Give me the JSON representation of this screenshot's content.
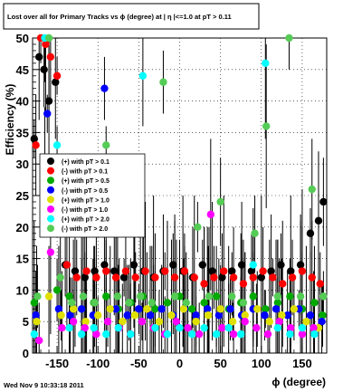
{
  "chart_data": {
    "type": "scatter",
    "title": "Lost over all for Primary Tracks vs ϕ (degree) at | η |<=1.0 at pT > 0.11",
    "xlabel": "ϕ (degree)",
    "ylabel": "Efficiency (%)",
    "xlim": [
      -180,
      180
    ],
    "ylim": [
      0,
      50
    ],
    "xticks": [
      -150,
      -100,
      -50,
      0,
      50,
      100,
      150
    ],
    "xtick_labels": [
      "-150",
      "-100",
      "-50",
      "0",
      "50",
      "100",
      "150"
    ],
    "yticks": [
      0,
      5,
      10,
      15,
      20,
      25,
      30,
      35,
      40,
      45,
      50
    ],
    "ytick_labels": [
      "0",
      "5",
      "10",
      "15",
      "20",
      "25",
      "30",
      "35",
      "40",
      "45",
      "50"
    ],
    "grid": true,
    "legend_position": "center-left",
    "series": [
      {
        "name": "(+) with pT > 0.1",
        "color": "#000000",
        "x": [
          -178,
          -172,
          -166,
          -160,
          -152,
          -140,
          -128,
          -116,
          -104,
          -92,
          -80,
          -68,
          -56,
          -44,
          -32,
          -20,
          -8,
          4,
          16,
          28,
          40,
          52,
          64,
          76,
          88,
          100,
          112,
          124,
          136,
          148,
          160,
          170,
          176
        ],
        "y": [
          34,
          47,
          45,
          40,
          43,
          14,
          13,
          12,
          13,
          14,
          13,
          12,
          14,
          13,
          12,
          13,
          14,
          13,
          12,
          14,
          13,
          12,
          13,
          14,
          13,
          12,
          13,
          14,
          13,
          14,
          19,
          21,
          24
        ]
      },
      {
        "name": "(-) with pT > 0.1",
        "color": "#ff0000",
        "x": [
          -176,
          -170,
          -164,
          -158,
          -150,
          -138,
          -126,
          -114,
          -102,
          -90,
          -78,
          -66,
          -54,
          -42,
          -30,
          -18,
          -6,
          6,
          18,
          30,
          42,
          54,
          66,
          78,
          90,
          102,
          114,
          126,
          138,
          150,
          162,
          172
        ],
        "y": [
          33,
          50,
          49,
          47,
          44,
          14,
          12,
          13,
          12,
          13,
          12,
          13,
          12,
          13,
          12,
          13,
          12,
          13,
          12,
          11,
          12,
          13,
          12,
          11,
          12,
          13,
          12,
          11,
          12,
          13,
          12,
          11
        ]
      },
      {
        "name": "(+) with pT > 0.5",
        "color": "#00aa00",
        "x": [
          -178,
          -165,
          -150,
          -135,
          -120,
          -105,
          -90,
          -75,
          -60,
          -45,
          -30,
          -15,
          0,
          15,
          30,
          45,
          60,
          75,
          90,
          105,
          120,
          135,
          150,
          165,
          175
        ],
        "y": [
          8,
          30,
          10,
          9,
          7,
          8,
          9,
          7,
          8,
          9,
          7,
          8,
          9,
          7,
          8,
          9,
          7,
          8,
          9,
          7,
          8,
          9,
          7,
          8,
          6
        ]
      },
      {
        "name": "(-) with pT > 0.5",
        "color": "#0000ff",
        "x": [
          -176,
          -162,
          -148,
          -134,
          -120,
          -106,
          -92,
          -78,
          -64,
          -50,
          -36,
          -22,
          -8,
          6,
          20,
          34,
          48,
          62,
          76,
          90,
          104,
          118,
          132,
          146,
          160,
          174
        ],
        "y": [
          6,
          38,
          7,
          6,
          7,
          6,
          42,
          7,
          6,
          7,
          6,
          7,
          6,
          7,
          6,
          7,
          6,
          7,
          6,
          7,
          6,
          7,
          6,
          7,
          6,
          5
        ]
      },
      {
        "name": "(+) with pT > 1.0",
        "color": "#e0e000",
        "x": [
          -175,
          -160,
          -145,
          -130,
          -115,
          -100,
          -85,
          -70,
          -55,
          -40,
          -25,
          -10,
          5,
          20,
          35,
          50,
          65,
          80,
          95,
          110,
          125,
          140,
          155,
          170
        ],
        "y": [
          5,
          9,
          6,
          7,
          5,
          6,
          7,
          5,
          6,
          7,
          5,
          6,
          7,
          5,
          6,
          7,
          5,
          6,
          7,
          5,
          6,
          7,
          5,
          4
        ]
      },
      {
        "name": "(-) with pT > 1.0",
        "color": "#ff00ff",
        "x": [
          -172,
          -158,
          -144,
          -130,
          -116,
          -102,
          -88,
          -74,
          -60,
          -46,
          -32,
          -18,
          -4,
          10,
          24,
          38,
          52,
          66,
          80,
          94,
          108,
          122,
          136,
          150,
          164
        ],
        "y": [
          2,
          16,
          4,
          5,
          4,
          3,
          5,
          4,
          3,
          5,
          4,
          3,
          5,
          4,
          3,
          22,
          4,
          3,
          5,
          4,
          3,
          5,
          4,
          3,
          4
        ]
      },
      {
        "name": "(+) with pT > 2.0",
        "color": "#00ffff",
        "x": [
          -178,
          -165,
          -150,
          -135,
          -120,
          -105,
          -90,
          -75,
          -60,
          -45,
          -30,
          -15,
          0,
          15,
          30,
          45,
          60,
          75,
          90,
          105,
          120,
          135,
          150,
          165
        ],
        "y": [
          3,
          50,
          33,
          4,
          3,
          4,
          3,
          4,
          3,
          44,
          4,
          3,
          4,
          3,
          4,
          3,
          4,
          3,
          14,
          46,
          4,
          3,
          4,
          3
        ]
      },
      {
        "name": "(-) with pT > 2.0",
        "color": "#55cc55",
        "x": [
          -174,
          -160,
          -146,
          -132,
          -118,
          -104,
          -90,
          -76,
          -62,
          -48,
          -34,
          -20,
          -6,
          8,
          22,
          36,
          50,
          64,
          78,
          92,
          106,
          120,
          134,
          148,
          162,
          176
        ],
        "y": [
          9,
          50,
          12,
          8,
          9,
          8,
          33,
          9,
          8,
          9,
          8,
          43,
          9,
          8,
          20,
          9,
          24,
          9,
          8,
          19,
          36,
          9,
          50,
          9,
          26,
          9
        ]
      }
    ]
  },
  "footer": {
    "timestamp": "Wed Nov  9 10:33:18 2011"
  }
}
